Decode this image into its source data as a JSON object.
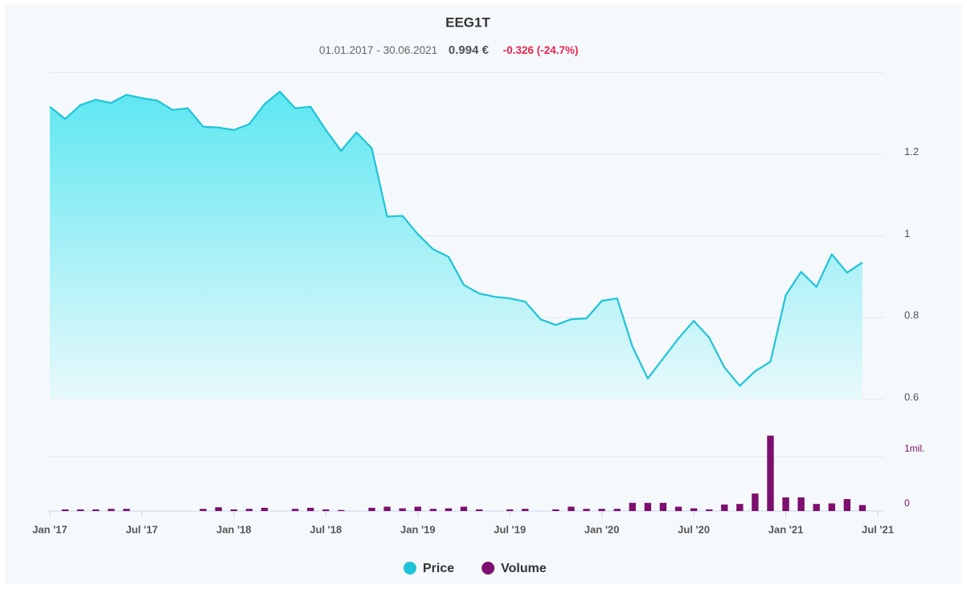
{
  "chart_data": {
    "type": "stock",
    "title": "EEG1T",
    "subtitle": {
      "period": "01.01.2017 - 30.06.2021",
      "last": "0.994 €",
      "change": "-0.326 (-24.7%)"
    },
    "x": [
      "2017-01",
      "2017-02",
      "2017-03",
      "2017-04",
      "2017-05",
      "2017-06",
      "2017-07",
      "2017-08",
      "2017-09",
      "2017-10",
      "2017-11",
      "2017-12",
      "2018-01",
      "2018-02",
      "2018-03",
      "2018-04",
      "2018-05",
      "2018-06",
      "2018-07",
      "2018-08",
      "2018-09",
      "2018-10",
      "2018-11",
      "2018-12",
      "2019-01",
      "2019-02",
      "2019-03",
      "2019-04",
      "2019-05",
      "2019-06",
      "2019-07",
      "2019-08",
      "2019-09",
      "2019-10",
      "2019-11",
      "2019-12",
      "2020-01",
      "2020-02",
      "2020-03",
      "2020-04",
      "2020-05",
      "2020-06",
      "2020-07",
      "2020-08",
      "2020-09",
      "2020-10",
      "2020-11",
      "2020-12",
      "2021-01",
      "2021-02",
      "2021-03",
      "2021-04",
      "2021-05",
      "2021-06"
    ],
    "xlim": [
      "2017-01",
      "2021-07"
    ],
    "xticks": [
      {
        "value": "2017-01",
        "label": "Jan '17"
      },
      {
        "value": "2017-07",
        "label": "Jul '17"
      },
      {
        "value": "2018-01",
        "label": "Jan '18"
      },
      {
        "value": "2018-07",
        "label": "Jul '18"
      },
      {
        "value": "2019-01",
        "label": "Jan '19"
      },
      {
        "value": "2019-07",
        "label": "Jul '19"
      },
      {
        "value": "2020-01",
        "label": "Jan '20"
      },
      {
        "value": "2020-07",
        "label": "Jul '20"
      },
      {
        "value": "2021-01",
        "label": "Jan '21"
      },
      {
        "value": "2021-07",
        "label": "Jul '21"
      }
    ],
    "ylim": [
      0.6,
      1.4
    ],
    "yticks": [
      0.6,
      0.8,
      1,
      1.2
    ],
    "y2lim": [
      0,
      2000000
    ],
    "y2ticks": [
      0,
      {
        "value": 1000000,
        "label": "1mil."
      }
    ],
    "grid": true,
    "legend": "bottom",
    "series": [
      {
        "name": "Price",
        "color": "#1fc3d8",
        "kind": "area",
        "values": [
          1.316,
          1.286,
          1.32,
          1.333,
          1.325,
          1.345,
          1.337,
          1.331,
          1.308,
          1.312,
          1.267,
          1.265,
          1.259,
          1.273,
          1.322,
          1.353,
          1.312,
          1.316,
          1.259,
          1.208,
          1.253,
          1.214,
          1.047,
          1.049,
          1.004,
          0.967,
          0.949,
          0.88,
          0.859,
          0.851,
          0.847,
          0.839,
          0.796,
          0.782,
          0.796,
          0.798,
          0.841,
          0.847,
          0.729,
          0.651,
          0.7,
          0.749,
          0.792,
          0.751,
          0.678,
          0.633,
          0.669,
          0.692,
          0.855,
          0.912,
          0.875,
          0.955,
          0.91,
          0.935
        ]
      },
      {
        "name": "Volume",
        "color": "#7d0f6e",
        "kind": "bar",
        "axis": "y2",
        "values": [
          0,
          30000,
          30000,
          30000,
          40000,
          40000,
          0,
          0,
          0,
          0,
          40000,
          70000,
          30000,
          40000,
          60000,
          0,
          40000,
          60000,
          30000,
          20000,
          0,
          60000,
          80000,
          50000,
          80000,
          40000,
          50000,
          80000,
          30000,
          0,
          30000,
          40000,
          0,
          30000,
          80000,
          40000,
          40000,
          40000,
          150000,
          150000,
          150000,
          80000,
          50000,
          30000,
          120000,
          130000,
          320000,
          1380000,
          250000,
          250000,
          130000,
          140000,
          220000,
          110000
        ]
      }
    ]
  }
}
